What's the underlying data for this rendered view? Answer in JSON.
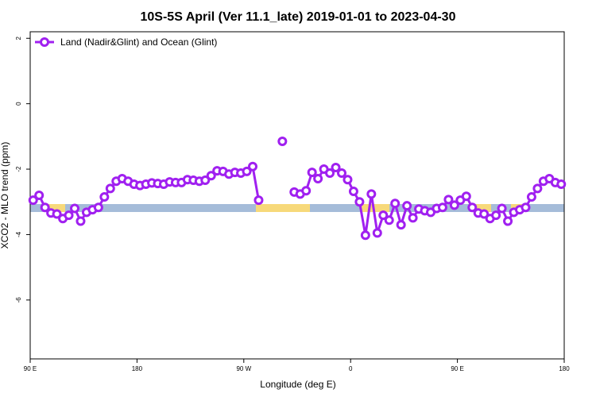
{
  "chart_data": {
    "type": "line",
    "title": "10S-5S April (Ver 11.1_late)   2019-01-01 to 2023-04-30",
    "x_label": "Longitude (deg E)",
    "y_label": "XCO2 - MLO trend (ppm)",
    "xlim": [
      90,
      540
    ],
    "xticks": [
      {
        "value": 90,
        "label": "90 E"
      },
      180,
      {
        "value": 270,
        "label": "90 W"
      },
      {
        "value": 360,
        "label": "0"
      },
      {
        "value": 450,
        "label": "90 E"
      },
      {
        "value": 540,
        "label": "180"
      }
    ],
    "ylim": [
      -7.8,
      2.2
    ],
    "yticks": [
      2,
      0,
      -2,
      -4,
      -6
    ],
    "legend": "upper left",
    "x": [
      92.5,
      97.5,
      102.5,
      107.5,
      112.5,
      117.5,
      122.5,
      127.5,
      132.5,
      137.5,
      142.5,
      147.5,
      152.5,
      157.5,
      162.5,
      167.5,
      172.5,
      177.5,
      182.5,
      187.5,
      192.5,
      197.5,
      202.5,
      207.5,
      212.5,
      217.5,
      222.5,
      227.5,
      232.5,
      237.5,
      242.5,
      247.5,
      252.5,
      257.5,
      262.5,
      267.5,
      272.5,
      277.5,
      282.5,
      287.5,
      292.5,
      297.5,
      302.5,
      307.5,
      312.5,
      317.5,
      322.5,
      327.5,
      332.5,
      337.5,
      342.5,
      347.5,
      352.5,
      357.5,
      362.5,
      367.5,
      372.5,
      377.5,
      382.5,
      387.5,
      392.5,
      397.5,
      402.5,
      407.5,
      412.5,
      417.5,
      422.5,
      427.5,
      432.5,
      437.5,
      442.5,
      447.5,
      452.5,
      457.5,
      462.5,
      467.5,
      472.5,
      477.5,
      482.5,
      487.5,
      492.5,
      497.5,
      502.5,
      507.5,
      512.5,
      517.5,
      522.5,
      527.5,
      532.5,
      537.5
    ],
    "series": [
      {
        "name": "Land (Nadir&Glint) and Ocean (Glint)",
        "color": "#a020f0",
        "values": [
          -2.95,
          -2.8,
          -3.17,
          -3.34,
          -3.37,
          -3.51,
          -3.41,
          -3.2,
          -3.59,
          -3.32,
          -3.24,
          -3.17,
          -2.85,
          -2.59,
          -2.37,
          -2.29,
          -2.37,
          -2.46,
          -2.5,
          -2.46,
          -2.42,
          -2.44,
          -2.46,
          -2.39,
          -2.41,
          -2.41,
          -2.32,
          -2.34,
          -2.37,
          -2.34,
          -2.2,
          -2.05,
          -2.07,
          -2.15,
          -2.1,
          -2.12,
          -2.07,
          -1.92,
          -2.95,
          null,
          null,
          null,
          -1.15,
          null,
          -2.7,
          -2.76,
          -2.66,
          -2.1,
          -2.29,
          -2.0,
          -2.12,
          -1.95,
          -2.12,
          -2.32,
          -2.68,
          -3.0,
          -4.02,
          -2.76,
          -3.95,
          -3.41,
          -3.56,
          -3.05,
          -3.7,
          -3.12,
          -3.49,
          -3.22,
          -3.27,
          -3.32,
          -3.2,
          -3.17,
          -2.93,
          -3.1,
          -2.95,
          -2.83,
          -3.17,
          -3.34,
          -3.37,
          -3.51,
          -3.41,
          -3.2,
          -3.59,
          -3.32,
          -3.24,
          -3.17,
          -2.85,
          -2.59,
          -2.37,
          -2.29,
          -2.41,
          -2.46
        ]
      }
    ]
  }
}
